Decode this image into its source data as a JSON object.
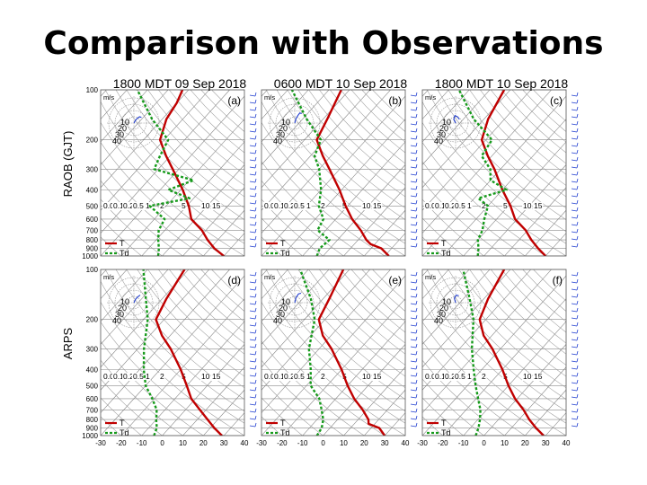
{
  "slide": {
    "title": "Comparison with Observations"
  },
  "colors": {
    "temperature": "#c00000",
    "dewpoint": "#169a1b",
    "wind": "#1f3ccf",
    "hodograph": "#1f3ccf",
    "grid": "#7a7a7a"
  },
  "icons": [
    "wind-barb-icon"
  ],
  "chart_data": {
    "type": "line",
    "layout": "2x3 skew-T log-p soundings",
    "rows": [
      "RAOB (GJT)",
      "ARPS"
    ],
    "pressure_ticks": [
      "100",
      "200",
      "300",
      "400",
      "500",
      "600",
      "700",
      "800",
      "900",
      "1000"
    ],
    "pressure_range": [
      100,
      1000
    ],
    "pressure_scale": "log",
    "temperature_ticks": [
      "-30",
      "-20",
      "-10",
      "0",
      "10",
      "20",
      "30",
      "40"
    ],
    "temperature_range": [
      -30,
      40
    ],
    "mixing_ratio_labels": [
      "0.05",
      "0.1",
      "0.2",
      "0.5",
      "1",
      "2",
      "5",
      "10",
      "15"
    ],
    "hodograph_units": "m/s",
    "hodograph_rings": [
      "10",
      "20",
      "30",
      "40"
    ],
    "legend": [
      "T",
      "Td"
    ],
    "panels": [
      {
        "letter": "(a)",
        "title": "1800 MDT 09 Sep 2018",
        "row": "RAOB (GJT)",
        "series": [
          {
            "name": "T",
            "data": [
              [
                1000,
                30
              ],
              [
                900,
                22
              ],
              [
                800,
                15
              ],
              [
                700,
                8
              ],
              [
                600,
                -2
              ],
              [
                500,
                -9
              ],
              [
                400,
                -19
              ],
              [
                300,
                -33
              ],
              [
                250,
                -42
              ],
              [
                200,
                -52
              ],
              [
                150,
                -58
              ],
              [
                120,
                -60
              ],
              [
                100,
                -63
              ]
            ]
          },
          {
            "name": "Td",
            "data": [
              [
                1000,
                -2
              ],
              [
                900,
                -5
              ],
              [
                800,
                -9
              ],
              [
                700,
                -13
              ],
              [
                600,
                -15
              ],
              [
                500,
                -28
              ],
              [
                450,
                -12
              ],
              [
                400,
                -26
              ],
              [
                350,
                -18
              ],
              [
                300,
                -42
              ],
              [
                250,
                -45
              ],
              [
                200,
                -48
              ],
              [
                150,
                -65
              ],
              [
                100,
                -85
              ]
            ]
          }
        ],
        "hodograph": [
          [
            0,
            0
          ],
          [
            3,
            5
          ],
          [
            6,
            8
          ],
          [
            9,
            10
          ],
          [
            12,
            9
          ]
        ]
      },
      {
        "letter": "(b)",
        "title": "0600 MDT 10 Sep 2018",
        "row": "RAOB (GJT)",
        "series": [
          {
            "name": "T",
            "data": [
              [
                1000,
                32
              ],
              [
                900,
                25
              ],
              [
                850,
                18
              ],
              [
                800,
                14
              ],
              [
                700,
                7
              ],
              [
                600,
                -2
              ],
              [
                500,
                -11
              ],
              [
                400,
                -21
              ],
              [
                300,
                -35
              ],
              [
                250,
                -44
              ],
              [
                200,
                -54
              ],
              [
                150,
                -58
              ],
              [
                100,
                -64
              ]
            ]
          },
          {
            "name": "Td",
            "data": [
              [
                1000,
                -3
              ],
              [
                900,
                -5
              ],
              [
                800,
                -4
              ],
              [
                700,
                -14
              ],
              [
                600,
                -16
              ],
              [
                500,
                -24
              ],
              [
                400,
                -30
              ],
              [
                300,
                -40
              ],
              [
                250,
                -48
              ],
              [
                200,
                -52
              ],
              [
                150,
                -68
              ],
              [
                100,
                -88
              ]
            ]
          }
        ],
        "hodograph": [
          [
            0,
            0
          ],
          [
            2,
            7
          ],
          [
            5,
            12
          ],
          [
            8,
            16
          ],
          [
            11,
            15
          ]
        ]
      },
      {
        "letter": "(c)",
        "title": "1800 MDT 10 Sep 2018",
        "row": "RAOB (GJT)",
        "series": [
          {
            "name": "T",
            "data": [
              [
                1000,
                30
              ],
              [
                900,
                23
              ],
              [
                800,
                16
              ],
              [
                700,
                9
              ],
              [
                600,
                -1
              ],
              [
                500,
                -9
              ],
              [
                400,
                -20
              ],
              [
                300,
                -33
              ],
              [
                250,
                -42
              ],
              [
                200,
                -52
              ],
              [
                150,
                -58
              ],
              [
                100,
                -63
              ]
            ]
          },
          {
            "name": "Td",
            "data": [
              [
                1000,
                -3
              ],
              [
                900,
                -6
              ],
              [
                800,
                -10
              ],
              [
                700,
                -12
              ],
              [
                600,
                -16
              ],
              [
                500,
                -20
              ],
              [
                450,
                -28
              ],
              [
                400,
                -18
              ],
              [
                350,
                -30
              ],
              [
                300,
                -35
              ],
              [
                250,
                -45
              ],
              [
                200,
                -47
              ],
              [
                150,
                -65
              ],
              [
                100,
                -85
              ]
            ]
          }
        ],
        "hodograph": [
          [
            0,
            0
          ],
          [
            -3,
            6
          ],
          [
            -1,
            12
          ],
          [
            3,
            10
          ],
          [
            6,
            6
          ]
        ]
      },
      {
        "letter": "(d)",
        "title": "",
        "row": "ARPS",
        "series": [
          {
            "name": "T",
            "data": [
              [
                1000,
                29
              ],
              [
                900,
                22
              ],
              [
                800,
                15
              ],
              [
                700,
                7
              ],
              [
                600,
                -2
              ],
              [
                500,
                -10
              ],
              [
                400,
                -20
              ],
              [
                300,
                -34
              ],
              [
                250,
                -44
              ],
              [
                200,
                -54
              ],
              [
                150,
                -58
              ],
              [
                100,
                -62
              ]
            ]
          },
          {
            "name": "Td",
            "data": [
              [
                1000,
                -4
              ],
              [
                900,
                -6
              ],
              [
                800,
                -10
              ],
              [
                700,
                -14
              ],
              [
                600,
                -21
              ],
              [
                500,
                -30
              ],
              [
                400,
                -38
              ],
              [
                300,
                -47
              ],
              [
                200,
                -58
              ],
              [
                150,
                -68
              ],
              [
                100,
                -82
              ]
            ]
          }
        ],
        "hodograph": [
          [
            0,
            0
          ],
          [
            3,
            6
          ],
          [
            7,
            10
          ],
          [
            10,
            12
          ]
        ]
      },
      {
        "letter": "(e)",
        "title": "",
        "row": "ARPS",
        "series": [
          {
            "name": "T",
            "data": [
              [
                1000,
                30
              ],
              [
                900,
                24
              ],
              [
                850,
                17
              ],
              [
                800,
                15
              ],
              [
                700,
                8
              ],
              [
                600,
                -1
              ],
              [
                500,
                -10
              ],
              [
                400,
                -20
              ],
              [
                300,
                -34
              ],
              [
                250,
                -44
              ],
              [
                200,
                -53
              ],
              [
                150,
                -57
              ],
              [
                100,
                -63
              ]
            ]
          },
          {
            "name": "Td",
            "data": [
              [
                1000,
                -3
              ],
              [
                900,
                -4
              ],
              [
                800,
                -7
              ],
              [
                700,
                -12
              ],
              [
                600,
                -18
              ],
              [
                500,
                -28
              ],
              [
                400,
                -35
              ],
              [
                300,
                -45
              ],
              [
                200,
                -55
              ],
              [
                150,
                -66
              ],
              [
                100,
                -84
              ]
            ]
          }
        ],
        "hodograph": [
          [
            0,
            0
          ],
          [
            2,
            8
          ],
          [
            6,
            14
          ],
          [
            10,
            15
          ]
        ]
      },
      {
        "letter": "(f)",
        "title": "",
        "row": "ARPS",
        "series": [
          {
            "name": "T",
            "data": [
              [
                1000,
                29
              ],
              [
                900,
                22
              ],
              [
                800,
                15
              ],
              [
                700,
                8
              ],
              [
                600,
                -1
              ],
              [
                500,
                -10
              ],
              [
                400,
                -20
              ],
              [
                300,
                -34
              ],
              [
                250,
                -44
              ],
              [
                200,
                -53
              ],
              [
                150,
                -58
              ],
              [
                100,
                -63
              ]
            ]
          },
          {
            "name": "Td",
            "data": [
              [
                1000,
                -4
              ],
              [
                900,
                -6
              ],
              [
                800,
                -9
              ],
              [
                700,
                -13
              ],
              [
                600,
                -19
              ],
              [
                500,
                -26
              ],
              [
                400,
                -34
              ],
              [
                300,
                -44
              ],
              [
                200,
                -56
              ],
              [
                150,
                -67
              ],
              [
                100,
                -83
              ]
            ]
          }
        ],
        "hodograph": [
          [
            0,
            0
          ],
          [
            -2,
            7
          ],
          [
            1,
            12
          ],
          [
            5,
            11
          ]
        ]
      }
    ]
  }
}
